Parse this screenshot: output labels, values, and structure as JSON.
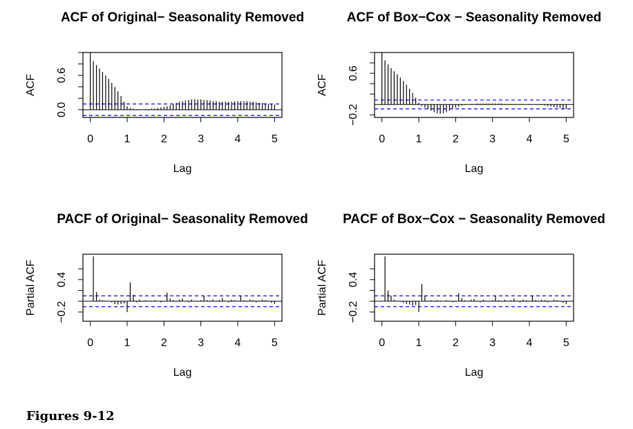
{
  "chart_data": [
    {
      "type": "acf",
      "title": "ACF of Original− Seasonality Removed",
      "xlabel": "Lag",
      "ylabel": "ACF",
      "x": [
        0,
        0.083,
        0.167,
        0.25,
        0.333,
        0.417,
        0.5,
        0.583,
        0.667,
        0.75,
        0.833,
        0.917,
        1,
        1.083,
        1.167,
        1.25,
        1.333,
        1.417,
        1.5,
        1.583,
        1.667,
        1.75,
        1.833,
        1.917,
        2,
        2.083,
        2.167,
        2.25,
        2.333,
        2.417,
        2.5,
        2.583,
        2.667,
        2.75,
        2.833,
        2.917,
        3,
        3.083,
        3.167,
        3.25,
        3.333,
        3.417,
        3.5,
        3.583,
        3.667,
        3.75,
        3.833,
        3.917,
        4,
        4.083,
        4.167,
        4.25,
        4.333,
        4.417,
        4.5,
        4.583,
        4.667,
        4.75,
        4.833,
        4.917,
        5
      ],
      "values": [
        1,
        0.85,
        0.78,
        0.72,
        0.66,
        0.6,
        0.54,
        0.47,
        0.4,
        0.32,
        0.24,
        0.14,
        0.06,
        0.03,
        0.02,
        0.01,
        0.01,
        0,
        0.01,
        0.01,
        0.02,
        0.02,
        0.03,
        0.04,
        0.05,
        0.06,
        0.08,
        0.1,
        0.12,
        0.14,
        0.15,
        0.16,
        0.17,
        0.18,
        0.18,
        0.18,
        0.18,
        0.17,
        0.17,
        0.16,
        0.15,
        0.15,
        0.14,
        0.14,
        0.14,
        0.14,
        0.14,
        0.15,
        0.15,
        0.15,
        0.15,
        0.15,
        0.14,
        0.14,
        0.13,
        0.12,
        0.12,
        0.11,
        0.1,
        0.1,
        0.09
      ],
      "color": "#000000",
      "ci_lines": [
        0.1,
        -0.1
      ],
      "ci_color": "#0000ff",
      "xlim": [
        -0.2,
        5.2
      ],
      "ylim": [
        -0.135,
        1.0
      ],
      "xticks": [
        0,
        1,
        2,
        3,
        4,
        5
      ],
      "yticks": [
        {
          "value": 0,
          "label": "0.0"
        },
        0.6
      ],
      "yminor_ticks": [
        0.2,
        0.4,
        0.8,
        1.0
      ]
    },
    {
      "type": "acf",
      "title": "ACF of Box−Cox − Seasonality Removed",
      "xlabel": "Lag",
      "ylabel": "ACF",
      "x": [
        0,
        0.083,
        0.167,
        0.25,
        0.333,
        0.417,
        0.5,
        0.583,
        0.667,
        0.75,
        0.833,
        0.917,
        1,
        1.083,
        1.167,
        1.25,
        1.333,
        1.417,
        1.5,
        1.583,
        1.667,
        1.75,
        1.833,
        1.917,
        2,
        2.083,
        2.167,
        2.25,
        2.333,
        2.417,
        2.5,
        2.583,
        2.667,
        2.75,
        2.833,
        2.917,
        3,
        3.083,
        3.167,
        3.25,
        3.333,
        3.417,
        3.5,
        3.583,
        3.667,
        3.75,
        3.833,
        3.917,
        4,
        4.083,
        4.167,
        4.25,
        4.333,
        4.417,
        4.5,
        4.583,
        4.667,
        4.75,
        4.833,
        4.917,
        5
      ],
      "values": [
        1,
        0.85,
        0.77,
        0.7,
        0.64,
        0.58,
        0.52,
        0.45,
        0.38,
        0.3,
        0.22,
        0.13,
        0.03,
        -0.03,
        -0.06,
        -0.09,
        -0.12,
        -0.15,
        -0.17,
        -0.18,
        -0.17,
        -0.15,
        -0.12,
        -0.09,
        -0.06,
        -0.04,
        -0.02,
        -0.01,
        0,
        0.01,
        0.01,
        0.02,
        0.02,
        0.02,
        0.02,
        0.02,
        0.02,
        0.02,
        0.02,
        0.02,
        0.01,
        0.01,
        0.01,
        0.01,
        0.01,
        0.01,
        0.01,
        0,
        0.01,
        0,
        0,
        -0.01,
        -0.01,
        -0.02,
        -0.03,
        -0.04,
        -0.05,
        -0.06,
        -0.07,
        -0.08,
        -0.09
      ],
      "color": "#000000",
      "ci_lines": [
        0.085,
        -0.085
      ],
      "ci_color": "#0000ff",
      "xlim": [
        -0.2,
        5.2
      ],
      "ylim": [
        -0.25,
        1.0
      ],
      "xticks": [
        0,
        1,
        2,
        3,
        4,
        5
      ],
      "yticks": [
        {
          "value": -0.2,
          "label": "−0.2"
        },
        0.6
      ],
      "yminor_ticks": [
        0.2,
        0.4,
        0.8,
        1.0
      ]
    },
    {
      "type": "acf",
      "title": "PACF of Original− Seasonality Removed",
      "xlabel": "Lag",
      "ylabel": "Partial ACF",
      "x": [
        0.083,
        0.167,
        0.25,
        0.333,
        0.417,
        0.5,
        0.583,
        0.667,
        0.75,
        0.833,
        0.917,
        1,
        1.083,
        1.167,
        1.25,
        1.333,
        1.417,
        1.5,
        1.583,
        1.667,
        1.75,
        1.833,
        1.917,
        2,
        2.083,
        2.167,
        2.25,
        2.333,
        2.417,
        2.5,
        2.583,
        2.667,
        2.75,
        2.833,
        2.917,
        3,
        3.083,
        3.167,
        3.25,
        3.333,
        3.417,
        3.5,
        3.583,
        3.667,
        3.75,
        3.833,
        3.917,
        4,
        4.083,
        4.167,
        4.25,
        4.333,
        4.417,
        4.5,
        4.583,
        4.667,
        4.75,
        4.833,
        4.917,
        5
      ],
      "values": [
        0.83,
        0.17,
        0.03,
        0.02,
        0.01,
        0,
        -0.02,
        -0.05,
        -0.06,
        -0.05,
        -0.04,
        -0.2,
        0.35,
        0.12,
        -0.02,
        0.03,
        -0.01,
        0.02,
        0.01,
        -0.01,
        0.02,
        0,
        -0.02,
        0.01,
        0.16,
        0.05,
        0.02,
        -0.01,
        0.03,
        0.05,
        0.01,
        -0.02,
        0.03,
        0.01,
        -0.01,
        0.02,
        0.1,
        0.02,
        -0.01,
        0.03,
        0.01,
        0.02,
        0.06,
        0.01,
        -0.02,
        0.03,
        0.02,
        0.01,
        0.1,
        0.02,
        -0.01,
        0.03,
        0.02,
        -0.02,
        0.01,
        0.03,
        0.02,
        -0.01,
        -0.03,
        -0.05
      ],
      "color": "#000000",
      "ci_lines": [
        0.1,
        -0.1
      ],
      "ci_color": "#0000ff",
      "xlim": [
        -0.2,
        5.2
      ],
      "ylim": [
        -0.37,
        0.87
      ],
      "xticks": [
        0,
        1,
        2,
        3,
        4,
        5
      ],
      "yticks": [
        {
          "value": -0.2,
          "label": "−0.2"
        },
        0.4
      ],
      "yminor_ticks": [
        0,
        0.2,
        0.6
      ]
    },
    {
      "type": "acf",
      "title": "PACF of Box−Cox − Seasonality Removed",
      "xlabel": "Lag",
      "ylabel": "Partial ACF",
      "x": [
        0.083,
        0.167,
        0.25,
        0.333,
        0.417,
        0.5,
        0.583,
        0.667,
        0.75,
        0.833,
        0.917,
        1,
        1.083,
        1.167,
        1.25,
        1.333,
        1.417,
        1.5,
        1.583,
        1.667,
        1.75,
        1.833,
        1.917,
        2,
        2.083,
        2.167,
        2.25,
        2.333,
        2.417,
        2.5,
        2.583,
        2.667,
        2.75,
        2.833,
        2.917,
        3,
        3.083,
        3.167,
        3.25,
        3.333,
        3.417,
        3.5,
        3.583,
        3.667,
        3.75,
        3.833,
        3.917,
        4,
        4.083,
        4.167,
        4.25,
        4.333,
        4.417,
        4.5,
        4.583,
        4.667,
        4.75,
        4.833,
        4.917,
        5
      ],
      "values": [
        0.83,
        0.2,
        0.1,
        0.03,
        0.01,
        -0.01,
        -0.03,
        -0.05,
        -0.06,
        -0.08,
        -0.07,
        -0.2,
        0.32,
        0.1,
        -0.01,
        0.02,
        -0.01,
        0.02,
        0.01,
        0,
        0.02,
        0.01,
        -0.02,
        0.01,
        0.15,
        0.06,
        0.02,
        -0.01,
        0.03,
        0.04,
        0.01,
        -0.02,
        0.03,
        0.01,
        -0.01,
        0.02,
        0.1,
        0.02,
        -0.01,
        0.03,
        0.01,
        0.02,
        0.05,
        0.01,
        -0.02,
        0.03,
        0.02,
        0.01,
        0.1,
        0.02,
        -0.01,
        0.03,
        0.02,
        -0.02,
        0.01,
        0.03,
        0.02,
        -0.01,
        -0.03,
        -0.05
      ],
      "color": "#000000",
      "ci_lines": [
        0.1,
        -0.1
      ],
      "ci_color": "#0000ff",
      "xlim": [
        -0.2,
        5.2
      ],
      "ylim": [
        -0.37,
        0.87
      ],
      "xticks": [
        0,
        1,
        2,
        3,
        4,
        5
      ],
      "yticks": [
        {
          "value": -0.2,
          "label": "−0.2"
        },
        0.4
      ],
      "yminor_ticks": [
        0,
        0.2,
        0.6
      ]
    }
  ],
  "caption": "Figures 9-12"
}
